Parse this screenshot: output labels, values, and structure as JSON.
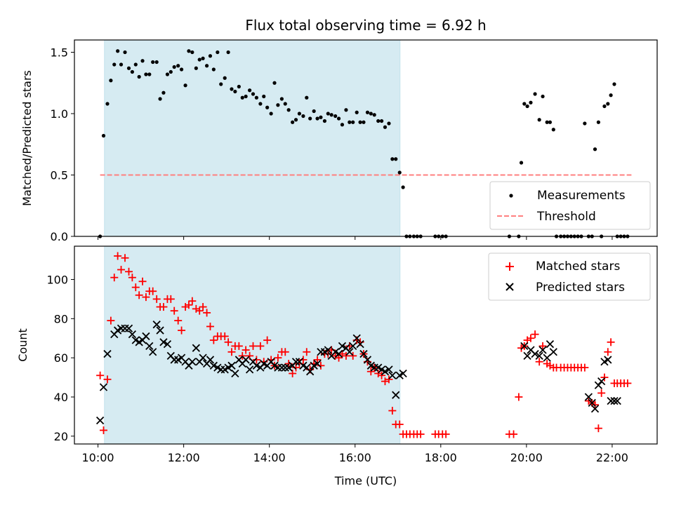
{
  "figure": {
    "title": "Flux total observing time = 6.92 h",
    "xlabel": "Time (UTC)",
    "x_tick_labels": [
      "10:00",
      "12:00",
      "14:00",
      "16:00",
      "18:00",
      "20:00",
      "22:00"
    ]
  },
  "chart_data": [
    {
      "type": "scatter",
      "title": "Flux total observing time = 6.92 h",
      "xlabel": "",
      "ylabel": "Matched/Predicted stars",
      "x_unit": "hours UTC",
      "xlim": [
        9.45,
        23.05
      ],
      "ylim": [
        0,
        1.6
      ],
      "yticks": [
        0.0,
        0.5,
        1.0,
        1.5
      ],
      "ytick_labels": [
        "0.0",
        "0.5",
        "1.0",
        "1.5"
      ],
      "x_ticks": [
        10,
        12,
        14,
        16,
        18,
        20,
        22
      ],
      "grid": false,
      "legend": "lower-right",
      "shaded_interval": {
        "x_start": 10.15,
        "x_end": 17.05,
        "color": "#add8e6"
      },
      "threshold": {
        "name": "Threshold",
        "y": 0.5,
        "x_start": 10.05,
        "x_end": 22.45,
        "color": "#ff7f7f",
        "style": "dashed"
      },
      "series": [
        {
          "name": "Measurements",
          "marker": "dot",
          "color": "#000000",
          "x": [
            10.05,
            10.13,
            10.22,
            10.3,
            10.38,
            10.46,
            10.54,
            10.63,
            10.72,
            10.8,
            10.88,
            10.96,
            11.04,
            11.12,
            11.2,
            11.28,
            11.37,
            11.45,
            11.53,
            11.62,
            11.7,
            11.78,
            11.87,
            11.95,
            12.04,
            12.12,
            12.2,
            12.29,
            12.37,
            12.45,
            12.54,
            12.62,
            12.7,
            12.79,
            12.87,
            12.96,
            13.04,
            13.12,
            13.2,
            13.29,
            13.37,
            13.45,
            13.54,
            13.62,
            13.7,
            13.79,
            13.87,
            13.95,
            14.04,
            14.12,
            14.2,
            14.29,
            14.37,
            14.45,
            14.54,
            14.62,
            14.7,
            14.79,
            14.87,
            14.95,
            15.04,
            15.12,
            15.2,
            15.29,
            15.37,
            15.45,
            15.54,
            15.62,
            15.7,
            15.79,
            15.87,
            15.95,
            16.04,
            16.12,
            16.2,
            16.29,
            16.37,
            16.45,
            16.54,
            16.62,
            16.7,
            16.79,
            16.87,
            16.95,
            17.04,
            17.12,
            17.2,
            17.28,
            17.37,
            17.45,
            17.53,
            17.87,
            17.95,
            18.04,
            18.12,
            19.6,
            19.82,
            19.88,
            19.95,
            20.02,
            20.1,
            20.2,
            20.3,
            20.38,
            20.48,
            20.55,
            20.63,
            20.7,
            20.8,
            20.88,
            20.96,
            21.04,
            21.12,
            21.2,
            21.28,
            21.36,
            21.45,
            21.53,
            21.6,
            21.68,
            21.75,
            21.82,
            21.9,
            21.97,
            22.05,
            22.12,
            22.2,
            22.28,
            22.36
          ],
          "y": [
            0.0,
            0.82,
            1.08,
            1.27,
            1.4,
            1.51,
            1.4,
            1.5,
            1.37,
            1.34,
            1.4,
            1.3,
            1.43,
            1.32,
            1.32,
            1.42,
            1.42,
            1.12,
            1.17,
            1.32,
            1.34,
            1.38,
            1.39,
            1.36,
            1.23,
            1.51,
            1.5,
            1.37,
            1.44,
            1.45,
            1.39,
            1.47,
            1.36,
            1.5,
            1.24,
            1.29,
            1.5,
            1.2,
            1.18,
            1.22,
            1.13,
            1.14,
            1.19,
            1.16,
            1.13,
            1.08,
            1.14,
            1.05,
            1.0,
            1.25,
            1.07,
            1.12,
            1.08,
            1.03,
            0.93,
            0.95,
            1.0,
            0.98,
            1.13,
            0.96,
            1.02,
            0.96,
            0.97,
            0.94,
            1.0,
            0.99,
            0.98,
            0.96,
            0.91,
            1.03,
            0.93,
            0.93,
            1.01,
            0.93,
            0.93,
            1.01,
            1.0,
            0.99,
            0.94,
            0.94,
            0.89,
            0.92,
            0.63,
            0.63,
            0.52,
            0.4,
            0.0,
            0.0,
            0.0,
            0.0,
            0.0,
            0.0,
            0.0,
            0.0,
            0.0,
            0.0,
            0.0,
            0.6,
            1.08,
            1.06,
            1.09,
            1.16,
            0.95,
            1.14,
            0.93,
            0.93,
            0.87,
            0.0,
            0.0,
            0.0,
            0.0,
            0.0,
            0.0,
            0.0,
            0.0,
            0.92,
            0.0,
            0.0,
            0.71,
            0.93,
            0.0,
            1.06,
            1.08,
            1.15,
            1.24,
            0.0,
            0.0,
            0.0,
            0.0
          ]
        }
      ]
    },
    {
      "type": "scatter",
      "xlabel": "Time (UTC)",
      "ylabel": "Count",
      "x_unit": "hours UTC",
      "xlim": [
        9.45,
        23.05
      ],
      "ylim": [
        16,
        117
      ],
      "yticks": [
        20,
        40,
        60,
        80,
        100
      ],
      "ytick_labels": [
        "20",
        "40",
        "60",
        "80",
        "100"
      ],
      "x_ticks": [
        10,
        12,
        14,
        16,
        18,
        20,
        22
      ],
      "xtick_labels": [
        "10:00",
        "12:00",
        "14:00",
        "16:00",
        "18:00",
        "20:00",
        "22:00"
      ],
      "grid": false,
      "legend": "top-right",
      "shaded_interval": {
        "x_start": 10.15,
        "x_end": 17.05,
        "color": "#add8e6"
      },
      "series": [
        {
          "name": "Matched stars",
          "marker": "plus",
          "color": "#ff0000",
          "x": [
            10.05,
            10.13,
            10.22,
            10.3,
            10.38,
            10.46,
            10.54,
            10.63,
            10.72,
            10.8,
            10.88,
            10.96,
            11.04,
            11.12,
            11.2,
            11.28,
            11.37,
            11.45,
            11.53,
            11.62,
            11.7,
            11.78,
            11.87,
            11.95,
            12.04,
            12.12,
            12.2,
            12.29,
            12.37,
            12.45,
            12.54,
            12.62,
            12.7,
            12.79,
            12.87,
            12.96,
            13.04,
            13.12,
            13.2,
            13.29,
            13.37,
            13.45,
            13.54,
            13.62,
            13.7,
            13.79,
            13.87,
            13.95,
            14.04,
            14.12,
            14.2,
            14.29,
            14.37,
            14.45,
            14.54,
            14.62,
            14.7,
            14.79,
            14.87,
            14.95,
            15.04,
            15.12,
            15.2,
            15.29,
            15.37,
            15.45,
            15.54,
            15.62,
            15.7,
            15.79,
            15.87,
            15.95,
            16.04,
            16.12,
            16.2,
            16.29,
            16.37,
            16.45,
            16.54,
            16.62,
            16.7,
            16.79,
            16.87,
            16.95,
            17.04,
            17.12,
            17.2,
            17.28,
            17.37,
            17.45,
            17.53,
            17.87,
            17.95,
            18.04,
            18.12,
            19.6,
            19.7,
            19.82,
            19.88,
            19.95,
            20.02,
            20.1,
            20.2,
            20.3,
            20.38,
            20.48,
            20.55,
            20.63,
            20.7,
            20.8,
            20.88,
            20.96,
            21.04,
            21.12,
            21.2,
            21.28,
            21.36,
            21.45,
            21.53,
            21.6,
            21.68,
            21.75,
            21.82,
            21.9,
            21.97,
            22.05,
            22.12,
            22.2,
            22.28,
            22.36
          ],
          "y": [
            51,
            23,
            49,
            79,
            101,
            112,
            105,
            111,
            104,
            101,
            96,
            92,
            99,
            91,
            94,
            94,
            90,
            86,
            86,
            90,
            90,
            84,
            79,
            74,
            86,
            87,
            89,
            85,
            84,
            86,
            83,
            76,
            69,
            71,
            71,
            71,
            68,
            63,
            66,
            66,
            61,
            64,
            61,
            66,
            59,
            66,
            58,
            69,
            59,
            56,
            60,
            63,
            63,
            57,
            52,
            55,
            57,
            59,
            63,
            54,
            57,
            59,
            56,
            62,
            62,
            64,
            61,
            60,
            62,
            61,
            66,
            61,
            69,
            68,
            62,
            58,
            53,
            55,
            52,
            51,
            48,
            49,
            33,
            26,
            26,
            21,
            21,
            21,
            21,
            21,
            21,
            21,
            21,
            21,
            21,
            21,
            21,
            40,
            65,
            66,
            69,
            70,
            72,
            58,
            66,
            57,
            56,
            55,
            55,
            55,
            55,
            55,
            55,
            55,
            55,
            55,
            55,
            38,
            37,
            36,
            24,
            42,
            50,
            63,
            68,
            47,
            47,
            47,
            47,
            47
          ]
        },
        {
          "name": "Predicted stars",
          "marker": "x",
          "color": "#000000",
          "x": [
            10.05,
            10.13,
            10.22,
            10.38,
            10.46,
            10.54,
            10.63,
            10.72,
            10.8,
            10.88,
            10.96,
            11.04,
            11.12,
            11.2,
            11.28,
            11.37,
            11.45,
            11.53,
            11.62,
            11.7,
            11.78,
            11.87,
            11.95,
            12.04,
            12.12,
            12.2,
            12.29,
            12.37,
            12.45,
            12.54,
            12.62,
            12.7,
            12.79,
            12.87,
            12.96,
            13.04,
            13.12,
            13.2,
            13.29,
            13.37,
            13.45,
            13.54,
            13.62,
            13.7,
            13.79,
            13.87,
            13.95,
            14.04,
            14.12,
            14.2,
            14.29,
            14.37,
            14.45,
            14.54,
            14.62,
            14.7,
            14.79,
            14.87,
            14.95,
            15.04,
            15.12,
            15.2,
            15.29,
            15.37,
            15.45,
            15.54,
            15.62,
            15.7,
            15.79,
            15.87,
            15.95,
            16.04,
            16.12,
            16.2,
            16.29,
            16.37,
            16.45,
            16.54,
            16.62,
            16.7,
            16.79,
            16.87,
            16.95,
            17.04,
            17.12,
            19.95,
            20.02,
            20.1,
            20.2,
            20.3,
            20.38,
            20.48,
            20.55,
            20.63,
            21.45,
            21.53,
            21.6,
            21.68,
            21.75,
            21.82,
            21.9,
            21.97,
            22.05,
            22.12
          ],
          "y": [
            28,
            45,
            62,
            72,
            74,
            75,
            75,
            75,
            72,
            69,
            68,
            69,
            71,
            66,
            63,
            77,
            74,
            68,
            67,
            61,
            59,
            59,
            60,
            58,
            56,
            58,
            65,
            58,
            60,
            57,
            59,
            56,
            55,
            54,
            54,
            55,
            56,
            52,
            59,
            57,
            59,
            54,
            58,
            56,
            55,
            57,
            56,
            58,
            56,
            55,
            55,
            55,
            55,
            56,
            58,
            58,
            56,
            55,
            53,
            56,
            57,
            63,
            63,
            64,
            61,
            63,
            62,
            66,
            65,
            63,
            66,
            70,
            67,
            62,
            59,
            56,
            55,
            55,
            54,
            53,
            54,
            51,
            41,
            51,
            52,
            66,
            61,
            64,
            62,
            61,
            64,
            60,
            67,
            63,
            40,
            37,
            34,
            46,
            48,
            58,
            59,
            38,
            38,
            38
          ]
        }
      ]
    }
  ]
}
